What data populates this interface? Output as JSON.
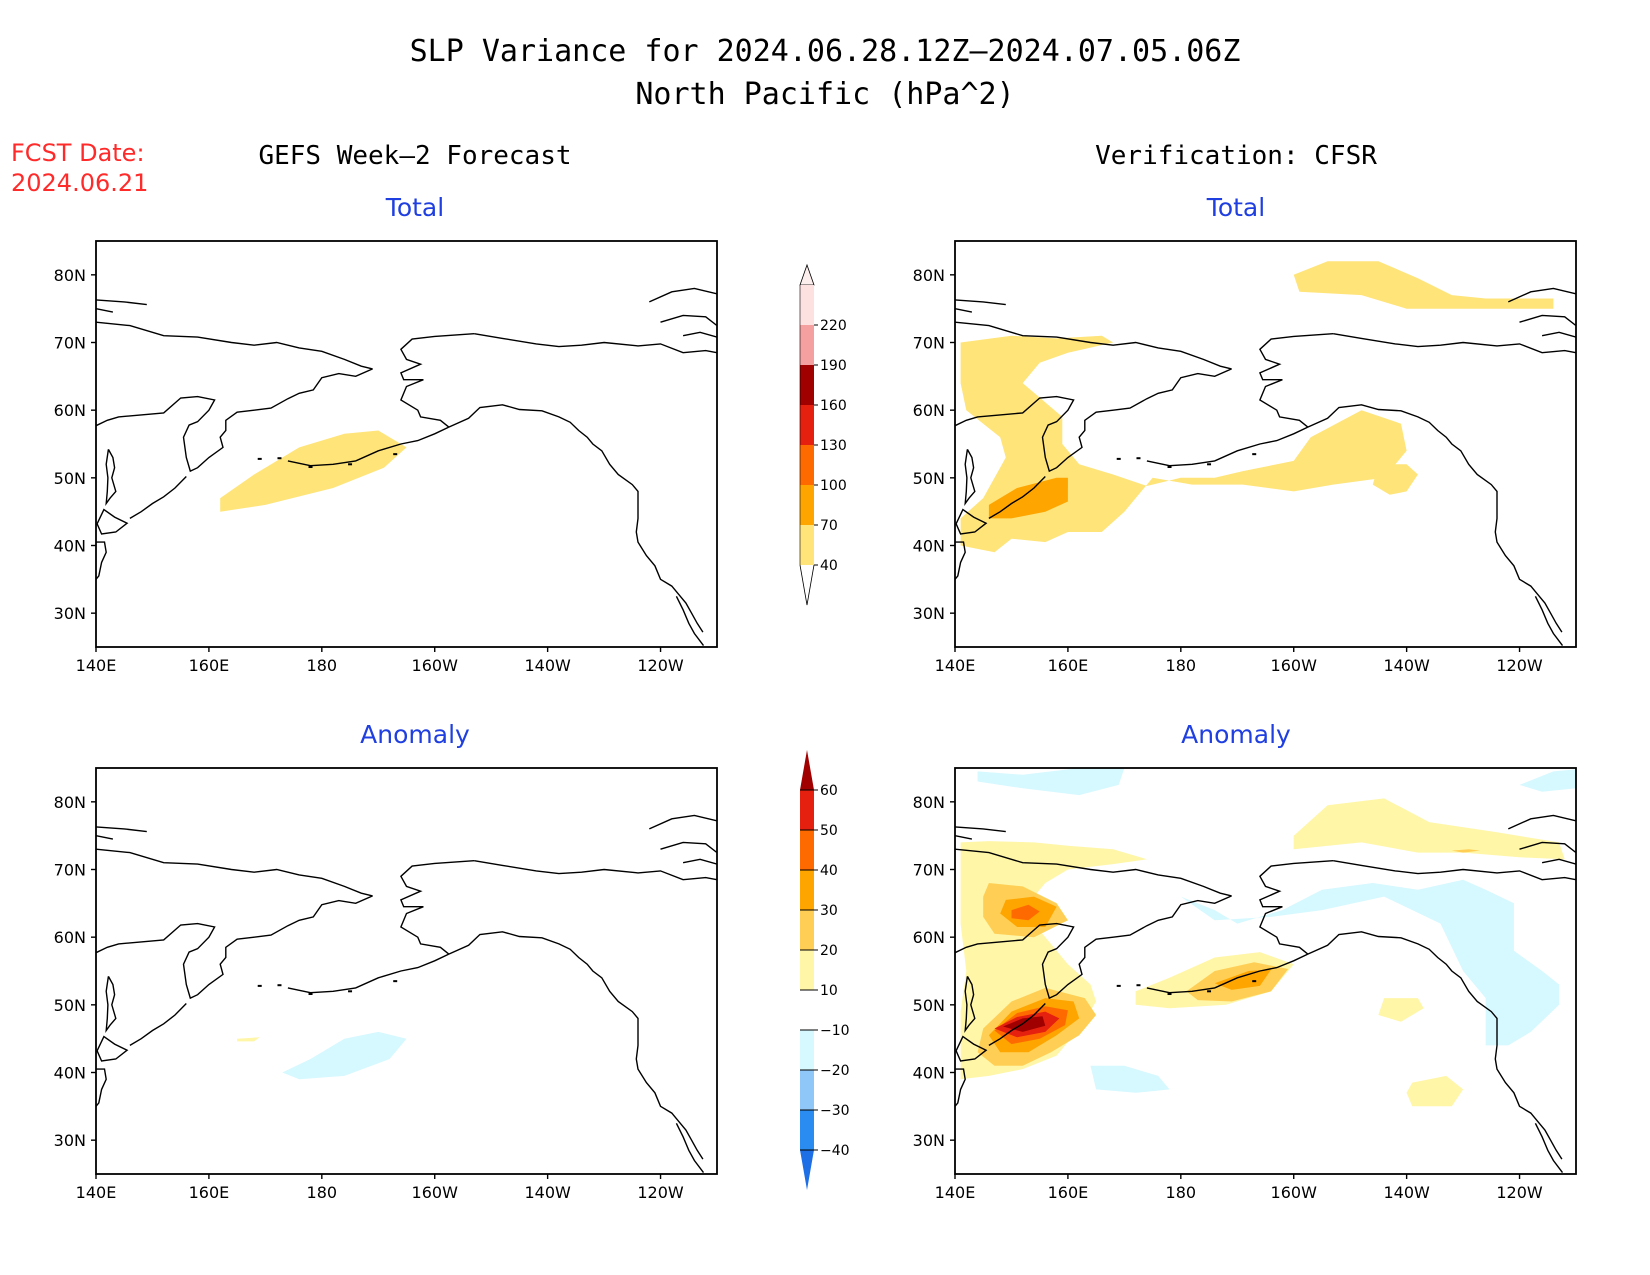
{
  "title_line1": "SLP Variance for 2024.06.28.12Z–2024.07.05.06Z",
  "title_line2": "North Pacific (hPa^2)",
  "fcst_label": "FCST Date:",
  "fcst_date": "2024.06.21",
  "left_column_title": "GEFS Week–2 Forecast",
  "right_column_title": "Verification: CFSR",
  "panels": [
    {
      "id": "gefs-total",
      "subtitle": "Total"
    },
    {
      "id": "cfsr-total",
      "subtitle": "Total"
    },
    {
      "id": "gefs-anomaly",
      "subtitle": "Anomaly"
    },
    {
      "id": "cfsr-anomaly",
      "subtitle": "Anomaly"
    }
  ],
  "map": {
    "lon_range": [
      140,
      250
    ],
    "lat_range": [
      25,
      85
    ],
    "x_ticks": [
      "140E",
      "160E",
      "180",
      "160W",
      "140W",
      "120W"
    ],
    "y_ticks": [
      "30N",
      "40N",
      "50N",
      "60N",
      "70N",
      "80N"
    ]
  },
  "total_colorbar": {
    "levels": [
      40,
      70,
      100,
      130,
      160,
      190,
      220
    ],
    "labels": [
      "40",
      "70",
      "100",
      "130",
      "160",
      "190",
      "220"
    ],
    "colors": [
      "#ffe47a",
      "#ffa500",
      "#ff6a00",
      "#e5200f",
      "#a00000",
      "#f4a0a0",
      "#fde0e0"
    ]
  },
  "anomaly_colorbar": {
    "levels": [
      -40,
      -30,
      -20,
      -10,
      10,
      20,
      30,
      40,
      50,
      60
    ],
    "labels": [
      "−40",
      "−30",
      "−20",
      "−10",
      "10",
      "20",
      "30",
      "40",
      "50",
      "60"
    ],
    "colors": [
      "#1e6fe6",
      "#2a8cf0",
      "#8fc8f8",
      "#d6f8ff",
      "#ffffff",
      "#fff6a8",
      "#ffcf55",
      "#ffa500",
      "#ff6a00",
      "#e5200f",
      "#a00000"
    ]
  }
}
